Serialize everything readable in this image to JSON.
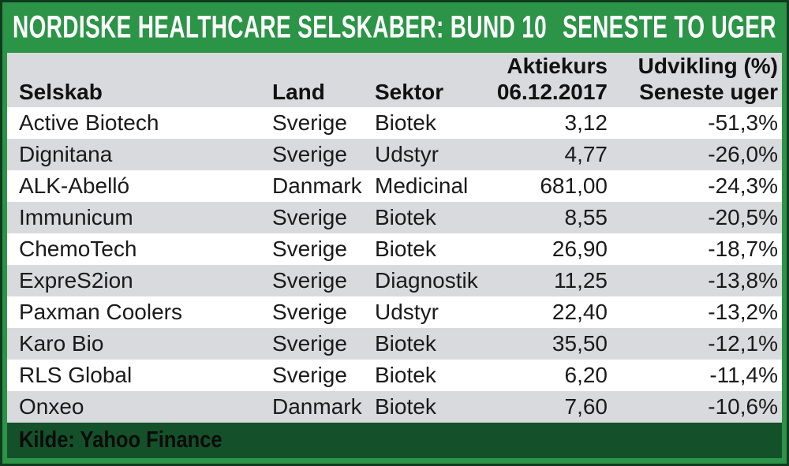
{
  "title": {
    "left": "NORDISKE HEALTHCARE SELSKABER: BUND 10",
    "right": "SENESTE TO UGER"
  },
  "header": {
    "columns": [
      {
        "label": "Selskab"
      },
      {
        "label": "Land"
      },
      {
        "label": "Sektor"
      },
      {
        "line1": "Aktiekurs",
        "line2": "06.12.2017"
      },
      {
        "line1": "Udvikling (%)",
        "line2": "Seneste uger"
      }
    ]
  },
  "footer": {
    "source": "Kilde: Yahoo Finance"
  },
  "colors": {
    "frame_green": "#2B9447",
    "footer_green": "#14512A",
    "outer_border": "#0E3A1F",
    "row_gray": "#D9DADD",
    "row_white": "#FFFFFF",
    "title_text": "#FFFFFF",
    "body_text": "#1A1A1A"
  },
  "chart_data": {
    "type": "table",
    "title": "NORDISKE HEALTHCARE SELSKABER: BUND 10 — SENESTE TO UGER",
    "columns": [
      "Selskab",
      "Land",
      "Sektor",
      "Aktiekurs 06.12.2017",
      "Udvikling (%) Seneste uger"
    ],
    "rows": [
      [
        "Active Biotech",
        "Sverige",
        "Biotek",
        "3,12",
        "-51,3%"
      ],
      [
        "Dignitana",
        "Sverige",
        "Udstyr",
        "4,77",
        "-26,0%"
      ],
      [
        "ALK-Abelló",
        "Danmark",
        "Medicinal",
        "681,00",
        "-24,3%"
      ],
      [
        "Immunicum",
        "Sverige",
        "Biotek",
        "8,55",
        "-20,5%"
      ],
      [
        "ChemoTech",
        "Sverige",
        "Biotek",
        "26,90",
        "-18,7%"
      ],
      [
        "ExpreS2ion",
        "Sverige",
        "Diagnostik",
        "11,25",
        "-13,8%"
      ],
      [
        "Paxman Coolers",
        "Sverige",
        "Udstyr",
        "22,40",
        "-13,2%"
      ],
      [
        "Karo Bio",
        "Sverige",
        "Biotek",
        "35,50",
        "-12,1%"
      ],
      [
        "RLS Global",
        "Sverige",
        "Biotek",
        "6,20",
        "-11,4%"
      ],
      [
        "Onxeo",
        "Danmark",
        "Biotek",
        "7,60",
        "-10,6%"
      ]
    ],
    "source": "Kilde: Yahoo Finance",
    "layout": {
      "striped": true,
      "stripe_order": "white-first",
      "value_columns_align": "right"
    }
  }
}
